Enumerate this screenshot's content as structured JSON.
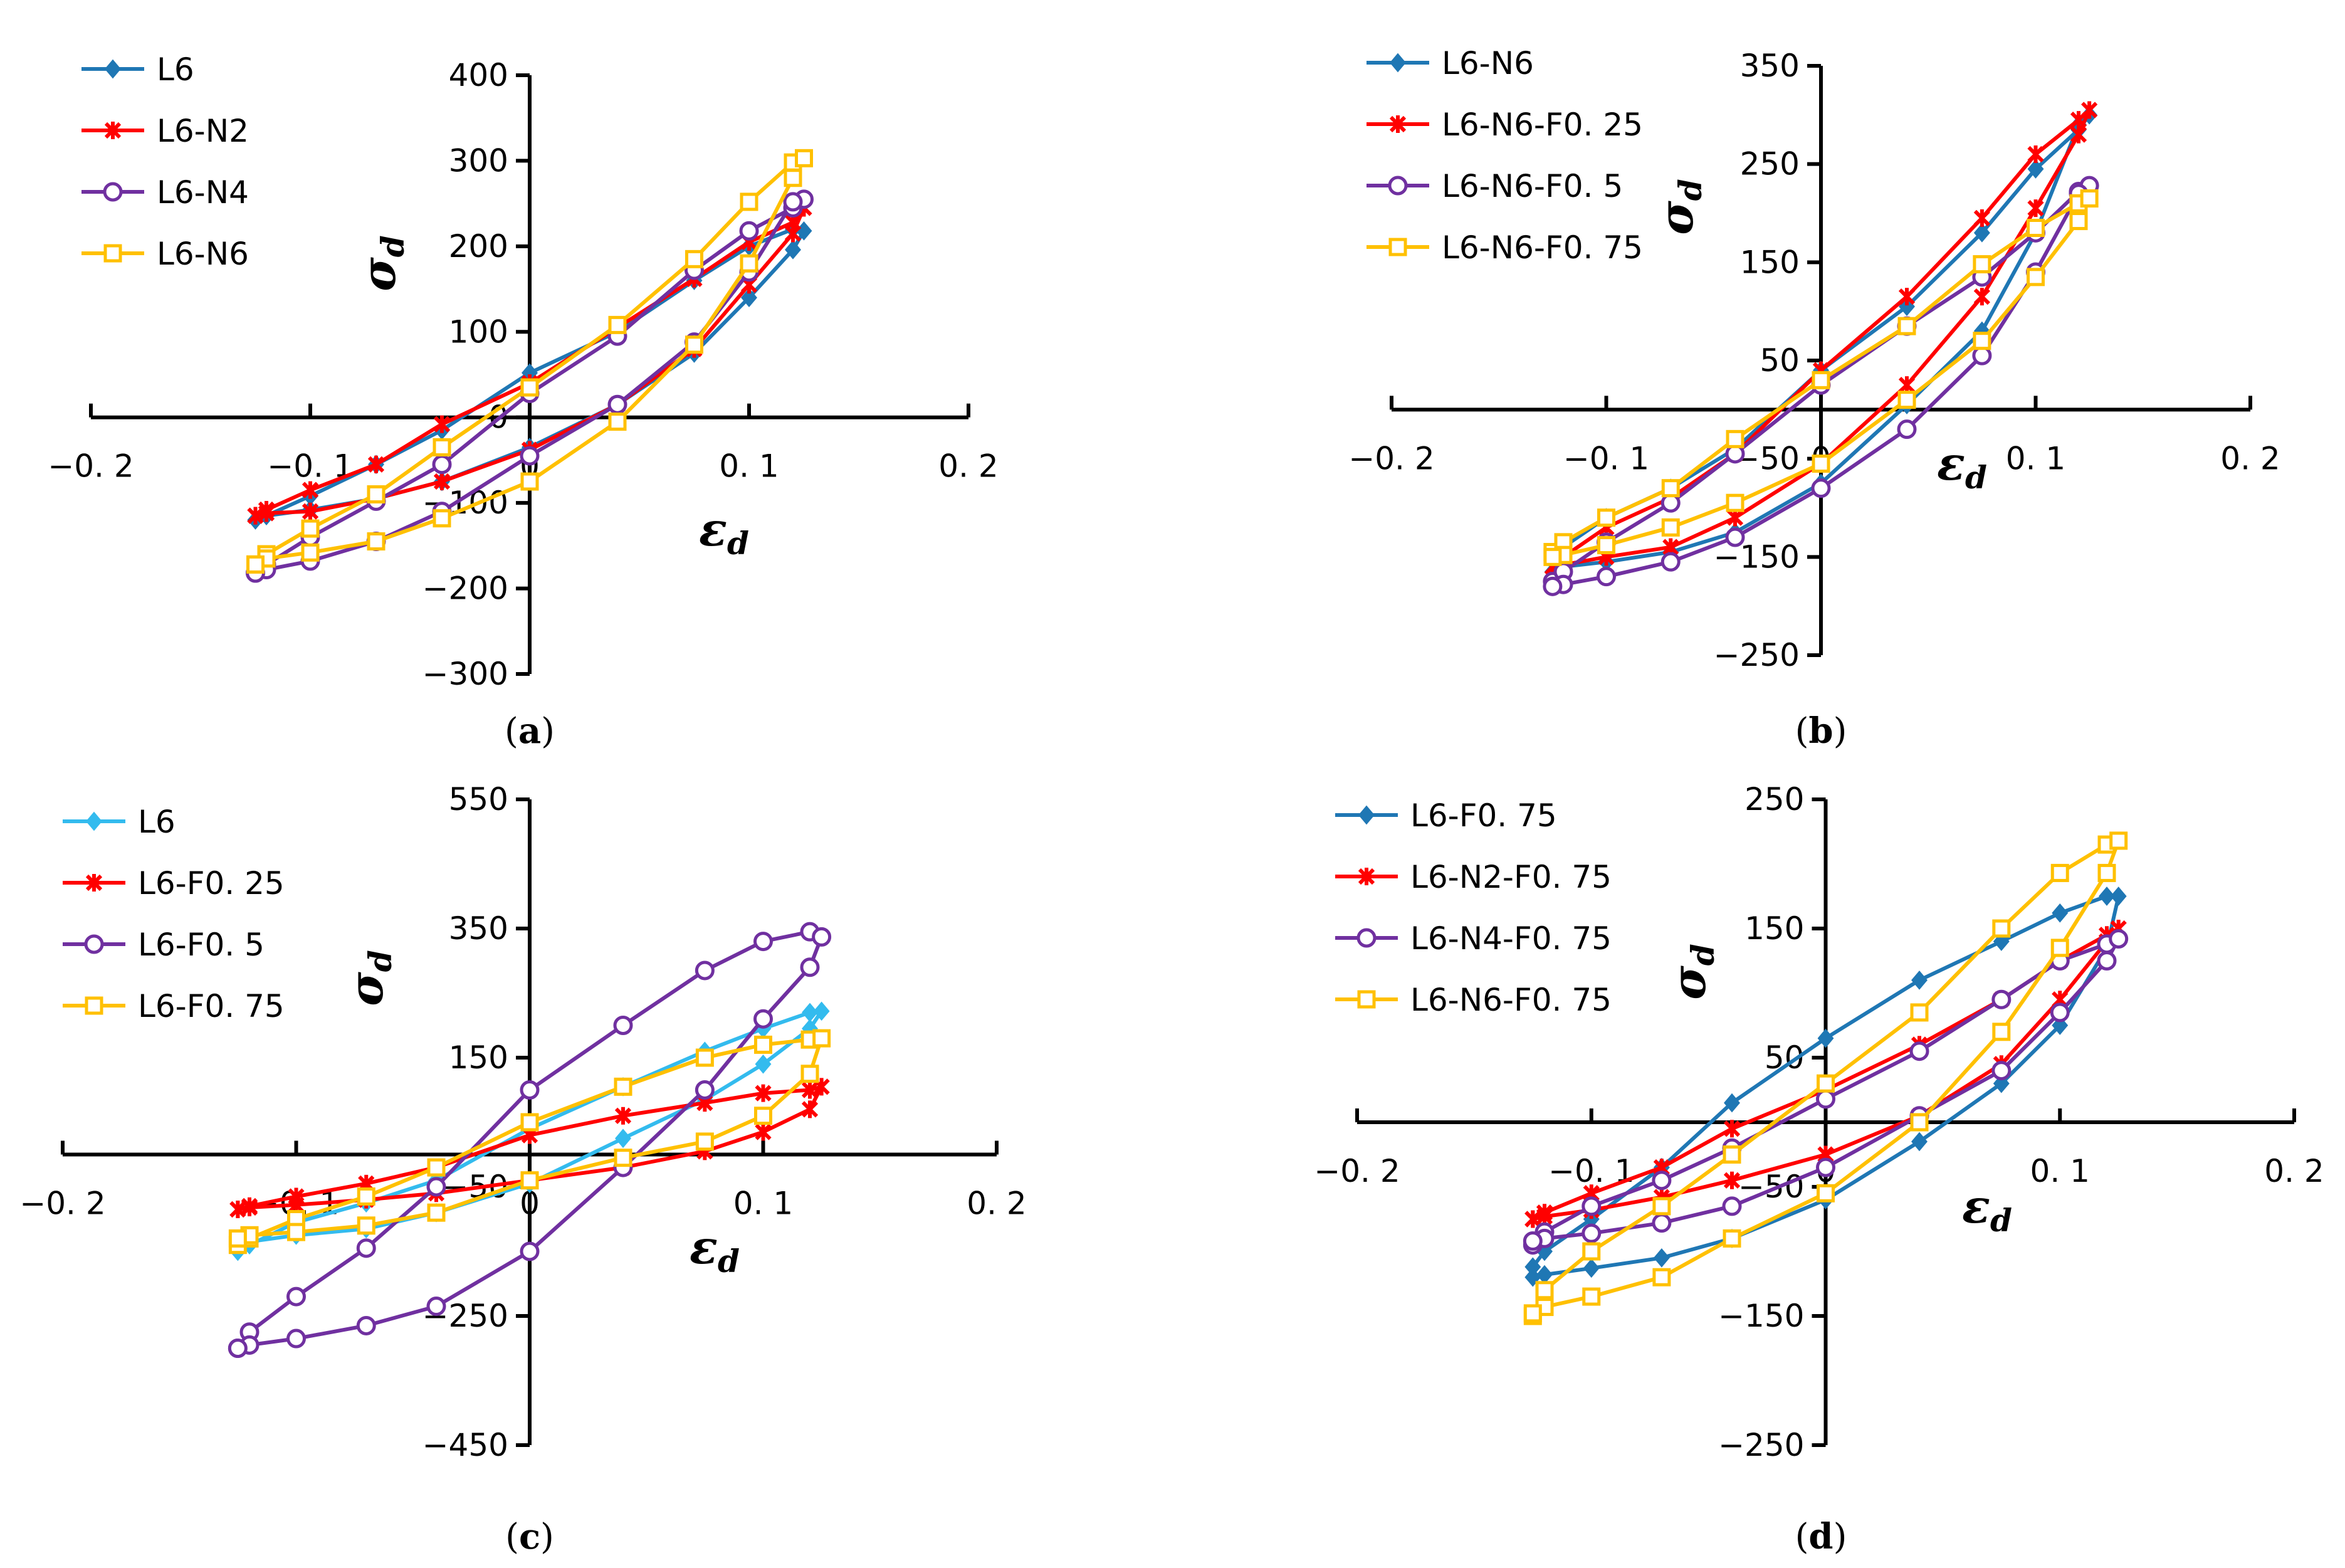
{
  "figure": {
    "panel_captions": [
      {
        "open": "(",
        "letter": "a",
        "close": ")"
      },
      {
        "open": "(",
        "letter": "b",
        "close": ")"
      },
      {
        "open": "(",
        "letter": "c",
        "close": ")"
      },
      {
        "open": "(",
        "letter": "d",
        "close": ")"
      }
    ]
  },
  "chart_data": [
    {
      "id": "a",
      "type": "line",
      "xlabel": {
        "main": "ε",
        "sub": "d"
      },
      "ylabel": {
        "main": "σ",
        "sub": "d"
      },
      "xlim": [
        -0.2,
        0.2
      ],
      "ylim": [
        -300,
        400
      ],
      "xticks": [
        -0.2,
        -0.1,
        0,
        0.1,
        0.2
      ],
      "xtick_labels": [
        "−0. 2",
        "−0. 1",
        "0",
        "0. 1",
        "0. 2"
      ],
      "yticks": [
        -300,
        -200,
        -100,
        0,
        100,
        200,
        300,
        400
      ],
      "ytick_labels": [
        "−300",
        "−200",
        "−100",
        "0",
        "100",
        "200",
        "300",
        "400"
      ],
      "legend": "top-left",
      "series": [
        {
          "name": "L6",
          "color": "#1f77b4",
          "marker": "diamond",
          "x": [
            -0.125,
            -0.12,
            -0.1,
            -0.07,
            -0.04,
            0,
            0.04,
            0.075,
            0.1,
            0.12,
            0.125,
            0.12,
            0.1,
            0.075,
            0.04,
            0,
            -0.04,
            -0.07,
            -0.1,
            -0.12,
            -0.125
          ],
          "y": [
            -120,
            -115,
            -92,
            -55,
            -15,
            52,
            100,
            160,
            200,
            220,
            218,
            196,
            140,
            75,
            15,
            -35,
            -75,
            -95,
            -108,
            -115,
            -120
          ]
        },
        {
          "name": "L6-N2",
          "color": "#ff0000",
          "marker": "star",
          "x": [
            -0.125,
            -0.12,
            -0.1,
            -0.07,
            -0.04,
            0,
            0.04,
            0.075,
            0.1,
            0.12,
            0.125,
            0.12,
            0.1,
            0.075,
            0.04,
            0,
            -0.04,
            -0.07,
            -0.1,
            -0.12,
            -0.125
          ],
          "y": [
            -115,
            -108,
            -85,
            -55,
            -8,
            40,
            105,
            162,
            205,
            228,
            245,
            215,
            155,
            80,
            15,
            -38,
            -75,
            -95,
            -110,
            -112,
            -115
          ]
        },
        {
          "name": "L6-N4",
          "color": "#7030a0",
          "marker": "circle",
          "x": [
            -0.125,
            -0.12,
            -0.1,
            -0.07,
            -0.04,
            0,
            0.04,
            0.075,
            0.1,
            0.12,
            0.125,
            0.12,
            0.1,
            0.075,
            0.04,
            0,
            -0.04,
            -0.07,
            -0.1,
            -0.12,
            -0.125
          ],
          "y": [
            -182,
            -172,
            -140,
            -98,
            -55,
            28,
            95,
            172,
            218,
            245,
            255,
            252,
            170,
            88,
            15,
            -45,
            -110,
            -145,
            -168,
            -178,
            -182
          ]
        },
        {
          "name": "L6-N6",
          "color": "#ffc000",
          "marker": "square",
          "x": [
            -0.125,
            -0.12,
            -0.1,
            -0.07,
            -0.04,
            0,
            0.04,
            0.075,
            0.1,
            0.12,
            0.125,
            0.12,
            0.1,
            0.075,
            0.04,
            0,
            -0.04,
            -0.07,
            -0.1,
            -0.12,
            -0.125
          ],
          "y": [
            -172,
            -160,
            -130,
            -90,
            -35,
            35,
            108,
            185,
            252,
            298,
            303,
            280,
            180,
            85,
            -5,
            -75,
            -118,
            -145,
            -158,
            -165,
            -172
          ]
        }
      ]
    },
    {
      "id": "b",
      "type": "line",
      "xlabel": {
        "main": "ε",
        "sub": "d"
      },
      "ylabel": {
        "main": "σ",
        "sub": "d"
      },
      "xlim": [
        -0.2,
        0.2
      ],
      "ylim": [
        -250,
        350
      ],
      "xticks": [
        -0.2,
        -0.1,
        0,
        0.1,
        0.2
      ],
      "xtick_labels": [
        "−0. 2",
        "−0. 1",
        "0",
        "0. 1",
        "0. 2"
      ],
      "yticks": [
        -250,
        -150,
        -50,
        50,
        150,
        250,
        350
      ],
      "ytick_labels": [
        "−250",
        "−150",
        "−50",
        "50",
        "150",
        "250",
        "350"
      ],
      "legend": "top-left",
      "series": [
        {
          "name": "L6-N6",
          "color": "#1f77b4",
          "marker": "diamond",
          "x": [
            -0.125,
            -0.12,
            -0.1,
            -0.07,
            -0.04,
            0,
            0.04,
            0.075,
            0.1,
            0.12,
            0.125,
            0.12,
            0.1,
            0.075,
            0.04,
            0,
            -0.04,
            -0.07,
            -0.1,
            -0.12,
            -0.125
          ],
          "y": [
            -150,
            -140,
            -110,
            -80,
            -40,
            40,
            105,
            180,
            245,
            285,
            300,
            290,
            180,
            80,
            5,
            -75,
            -125,
            -145,
            -155,
            -160,
            -165
          ]
        },
        {
          "name": "L6-N6-F0. 25",
          "color": "#ff0000",
          "marker": "star",
          "x": [
            -0.125,
            -0.12,
            -0.1,
            -0.07,
            -0.04,
            0,
            0.04,
            0.075,
            0.1,
            0.12,
            0.125,
            0.12,
            0.1,
            0.075,
            0.04,
            0,
            -0.04,
            -0.07,
            -0.1,
            -0.12,
            -0.125
          ],
          "y": [
            -160,
            -150,
            -120,
            -90,
            -45,
            40,
            115,
            195,
            260,
            295,
            305,
            280,
            205,
            115,
            25,
            -55,
            -110,
            -140,
            -150,
            -158,
            -160
          ]
        },
        {
          "name": "L6-N6-F0. 5",
          "color": "#7030a0",
          "marker": "circle",
          "x": [
            -0.125,
            -0.12,
            -0.1,
            -0.07,
            -0.04,
            0,
            0.04,
            0.075,
            0.1,
            0.12,
            0.125,
            0.12,
            0.1,
            0.075,
            0.04,
            0,
            -0.04,
            -0.07,
            -0.1,
            -0.12,
            -0.125
          ],
          "y": [
            -175,
            -165,
            -135,
            -95,
            -45,
            25,
            85,
            135,
            180,
            222,
            228,
            220,
            140,
            55,
            -20,
            -80,
            -130,
            -155,
            -170,
            -178,
            -180
          ]
        },
        {
          "name": "L6-N6-F0. 75",
          "color": "#ffc000",
          "marker": "square",
          "x": [
            -0.125,
            -0.12,
            -0.1,
            -0.07,
            -0.04,
            0,
            0.04,
            0.075,
            0.1,
            0.12,
            0.125,
            0.12,
            0.1,
            0.075,
            0.04,
            0,
            -0.04,
            -0.07,
            -0.1,
            -0.12,
            -0.125
          ],
          "y": [
            -145,
            -135,
            -110,
            -80,
            -30,
            30,
            85,
            148,
            185,
            210,
            215,
            192,
            135,
            70,
            10,
            -55,
            -95,
            -120,
            -138,
            -148,
            -150
          ]
        }
      ]
    },
    {
      "id": "c",
      "type": "line",
      "xlabel": {
        "main": "ε",
        "sub": "d"
      },
      "ylabel": {
        "main": "σ",
        "sub": "d"
      },
      "xlim": [
        -0.2,
        0.2
      ],
      "ylim": [
        -450,
        550
      ],
      "xticks": [
        -0.2,
        -0.1,
        0,
        0.1,
        0.2
      ],
      "xtick_labels": [
        "−0. 2",
        "−0. 1",
        "0",
        "0. 1",
        "0. 2"
      ],
      "yticks": [
        -450,
        -250,
        -50,
        150,
        350,
        550
      ],
      "ytick_labels": [
        "−450",
        "−250",
        "−50",
        "150",
        "350",
        "550"
      ],
      "legend": "top-left",
      "series": [
        {
          "name": "L6",
          "color": "#33bbee",
          "marker": "diamond",
          "x": [
            -0.125,
            -0.12,
            -0.1,
            -0.07,
            -0.04,
            0,
            0.04,
            0.075,
            0.1,
            0.12,
            0.125,
            0.12,
            0.1,
            0.075,
            0.04,
            0,
            -0.04,
            -0.07,
            -0.1,
            -0.12,
            -0.125
          ],
          "y": [
            -150,
            -140,
            -105,
            -75,
            -40,
            40,
            105,
            160,
            195,
            220,
            222,
            195,
            140,
            85,
            25,
            -45,
            -90,
            -115,
            -125,
            -135,
            -140
          ]
        },
        {
          "name": "L6-F0. 25",
          "color": "#ff0000",
          "marker": "star",
          "x": [
            -0.125,
            -0.12,
            -0.1,
            -0.07,
            -0.04,
            0,
            0.04,
            0.075,
            0.1,
            0.12,
            0.125,
            0.12,
            0.1,
            0.075,
            0.04,
            0,
            -0.04,
            -0.07,
            -0.1,
            -0.12,
            -0.125
          ],
          "y": [
            -85,
            -80,
            -65,
            -45,
            -20,
            30,
            60,
            80,
            95,
            100,
            105,
            70,
            35,
            5,
            -20,
            -40,
            -60,
            -70,
            -78,
            -82,
            -85
          ]
        },
        {
          "name": "L6-F0. 5",
          "color": "#7030a0",
          "marker": "circle",
          "x": [
            -0.125,
            -0.12,
            -0.1,
            -0.07,
            -0.04,
            0,
            0.04,
            0.075,
            0.1,
            0.12,
            0.125,
            0.12,
            0.1,
            0.075,
            0.04,
            0,
            -0.04,
            -0.07,
            -0.1,
            -0.12,
            -0.125
          ],
          "y": [
            -300,
            -275,
            -220,
            -145,
            -50,
            100,
            200,
            285,
            330,
            345,
            337,
            290,
            210,
            100,
            -20,
            -150,
            -235,
            -265,
            -285,
            -295,
            -300
          ]
        },
        {
          "name": "L6-F0. 75",
          "color": "#ffc000",
          "marker": "square",
          "x": [
            -0.125,
            -0.12,
            -0.1,
            -0.07,
            -0.04,
            0,
            0.04,
            0.075,
            0.1,
            0.12,
            0.125,
            0.12,
            0.1,
            0.075,
            0.04,
            0,
            -0.04,
            -0.07,
            -0.1,
            -0.12,
            -0.125
          ],
          "y": [
            -140,
            -130,
            -100,
            -65,
            -20,
            50,
            105,
            150,
            170,
            178,
            180,
            125,
            60,
            20,
            -5,
            -40,
            -90,
            -110,
            -120,
            -125,
            -130
          ]
        }
      ]
    },
    {
      "id": "d",
      "type": "line",
      "xlabel": {
        "main": "ε",
        "sub": "d"
      },
      "ylabel": {
        "main": "σ",
        "sub": "d"
      },
      "xlim": [
        -0.2,
        0.2
      ],
      "ylim": [
        -250,
        250
      ],
      "xticks": [
        -0.2,
        -0.1,
        0,
        0.1,
        0.2
      ],
      "xtick_labels": [
        "−0. 2",
        "−0. 1",
        "0",
        "0. 1",
        "0. 2"
      ],
      "yticks": [
        -250,
        -150,
        -50,
        50,
        150,
        250
      ],
      "ytick_labels": [
        "−250",
        "−150",
        "−50",
        "50",
        "150",
        "250"
      ],
      "legend": "top-left",
      "series": [
        {
          "name": "L6-F0. 75",
          "color": "#1f77b4",
          "marker": "diamond",
          "x": [
            -0.125,
            -0.12,
            -0.1,
            -0.07,
            -0.04,
            0,
            0.04,
            0.075,
            0.1,
            0.12,
            0.125,
            0.12,
            0.1,
            0.075,
            0.04,
            0,
            -0.04,
            -0.07,
            -0.1,
            -0.12,
            -0.125
          ],
          "y": [
            -112,
            -100,
            -75,
            -35,
            15,
            65,
            110,
            140,
            162,
            175,
            175,
            135,
            75,
            30,
            -15,
            -60,
            -90,
            -105,
            -113,
            -118,
            -120
          ]
        },
        {
          "name": "L6-N2-F0. 75",
          "color": "#ff0000",
          "marker": "star",
          "x": [
            -0.125,
            -0.12,
            -0.1,
            -0.07,
            -0.04,
            0,
            0.04,
            0.075,
            0.1,
            0.12,
            0.125,
            0.12,
            0.1,
            0.075,
            0.04,
            0,
            -0.04,
            -0.07,
            -0.1,
            -0.12,
            -0.125
          ],
          "y": [
            -75,
            -70,
            -55,
            -35,
            -5,
            25,
            60,
            95,
            125,
            145,
            150,
            140,
            95,
            45,
            5,
            -25,
            -45,
            -58,
            -68,
            -73,
            -75
          ]
        },
        {
          "name": "L6-N4-F0. 75",
          "color": "#7030a0",
          "marker": "circle",
          "x": [
            -0.125,
            -0.12,
            -0.1,
            -0.07,
            -0.04,
            0,
            0.04,
            0.075,
            0.1,
            0.12,
            0.125,
            0.12,
            0.1,
            0.075,
            0.04,
            0,
            -0.04,
            -0.07,
            -0.1,
            -0.12,
            -0.125
          ],
          "y": [
            -95,
            -85,
            -65,
            -45,
            -20,
            18,
            55,
            95,
            125,
            138,
            142,
            125,
            85,
            40,
            5,
            -35,
            -65,
            -78,
            -86,
            -90,
            -92
          ]
        },
        {
          "name": "L6-N6-F0. 75",
          "color": "#ffc000",
          "marker": "square",
          "x": [
            -0.125,
            -0.12,
            -0.1,
            -0.07,
            -0.04,
            0,
            0.04,
            0.075,
            0.1,
            0.12,
            0.125,
            0.12,
            0.1,
            0.075,
            0.04,
            0,
            -0.04,
            -0.07,
            -0.1,
            -0.12,
            -0.125
          ],
          "y": [
            -150,
            -130,
            -100,
            -65,
            -25,
            30,
            85,
            150,
            193,
            215,
            218,
            193,
            135,
            70,
            0,
            -55,
            -90,
            -120,
            -135,
            -143,
            -148
          ]
        }
      ]
    }
  ]
}
